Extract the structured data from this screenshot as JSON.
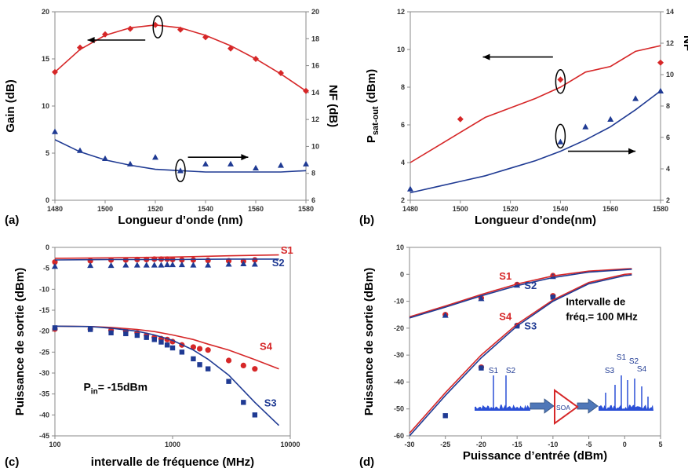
{
  "chart_data": [
    {
      "id": "a",
      "panel_label": "(a)",
      "type": "scatter",
      "xlabel": "Longueur d’onde (nm)",
      "ylabel": "Gain (dB)",
      "y2label": "NF (dB)",
      "xlim": [
        1480,
        1580
      ],
      "ylim": [
        0,
        20
      ],
      "y2lim": [
        6,
        20
      ],
      "xticks": [
        "1480",
        "1500",
        "1520",
        "1540",
        "1560",
        "1580"
      ],
      "yticks": [
        "0",
        "5",
        "10",
        "15",
        "20"
      ],
      "y2ticks": [
        "6",
        "8",
        "10",
        "12",
        "14",
        "16",
        "18",
        "20"
      ],
      "series": [
        {
          "axis": "y",
          "kind": "points",
          "marker": "diamond",
          "color": "#d62728",
          "x": [
            1480,
            1490,
            1500,
            1510,
            1520,
            1530,
            1540,
            1550,
            1560,
            1570,
            1580
          ],
          "y": [
            13.6,
            16.2,
            17.6,
            18.2,
            18.6,
            18.1,
            17.3,
            16.1,
            15.0,
            13.5,
            11.6
          ]
        },
        {
          "axis": "y",
          "kind": "line",
          "color": "#d62728",
          "x": [
            1480,
            1490,
            1500,
            1510,
            1520,
            1530,
            1540,
            1550,
            1560,
            1570,
            1580
          ],
          "y": [
            13.6,
            16.0,
            17.5,
            18.3,
            18.6,
            18.3,
            17.5,
            16.4,
            15.0,
            13.4,
            11.6
          ]
        },
        {
          "axis": "y2",
          "kind": "points",
          "marker": "triangle",
          "color": "#1f3a93",
          "x": [
            1480,
            1490,
            1500,
            1510,
            1520,
            1530,
            1540,
            1550,
            1560,
            1570,
            1580
          ],
          "y": [
            11.1,
            9.7,
            9.1,
            8.7,
            9.2,
            8.2,
            8.7,
            8.7,
            8.4,
            8.6,
            8.7
          ]
        },
        {
          "axis": "y2",
          "kind": "line",
          "color": "#1f3a93",
          "x": [
            1480,
            1490,
            1500,
            1510,
            1520,
            1530,
            1540,
            1550,
            1560,
            1570,
            1580
          ],
          "y": [
            10.5,
            9.6,
            9.0,
            8.6,
            8.3,
            8.2,
            8.1,
            8.1,
            8.1,
            8.1,
            8.2
          ]
        }
      ]
    },
    {
      "id": "b",
      "panel_label": "(b)",
      "type": "scatter",
      "xlabel": "Longueur d’onde(nm)",
      "ylabel_main": "P",
      "ylabel_sub": "sat-out",
      "ylabel_unit": " (dBm)",
      "y2label": "NF",
      "xlim": [
        1480,
        1580
      ],
      "ylim": [
        2,
        12
      ],
      "y2lim": [
        2,
        14
      ],
      "xticks": [
        "1480",
        "1500",
        "1520",
        "1540",
        "1560",
        "1580"
      ],
      "yticks": [
        "2",
        "4",
        "6",
        "8",
        "10",
        "12"
      ],
      "y2ticks": [
        "2",
        "4",
        "6",
        "8",
        "10",
        "12",
        "14"
      ],
      "series": [
        {
          "axis": "y",
          "kind": "points",
          "marker": "diamond",
          "color": "#d62728",
          "x": [
            1500,
            1540,
            1580
          ],
          "y": [
            6.3,
            8.4,
            9.3
          ]
        },
        {
          "axis": "y",
          "kind": "line",
          "color": "#d62728",
          "x": [
            1480,
            1490,
            1500,
            1510,
            1520,
            1530,
            1540,
            1550,
            1560,
            1570,
            1580
          ],
          "y": [
            4.0,
            4.8,
            5.6,
            6.4,
            6.9,
            7.4,
            8.0,
            8.8,
            9.1,
            9.9,
            10.2
          ]
        },
        {
          "axis": "y",
          "kind": "points",
          "marker": "triangle",
          "color": "#1f3a93",
          "x": [
            1480,
            1540,
            1550,
            1560,
            1570,
            1580
          ],
          "y": [
            2.6,
            5.1,
            5.9,
            6.3,
            7.4,
            7.8
          ]
        },
        {
          "axis": "y",
          "kind": "line",
          "color": "#1f3a93",
          "x": [
            1480,
            1490,
            1500,
            1510,
            1520,
            1530,
            1540,
            1550,
            1560,
            1570,
            1580
          ],
          "y": [
            2.4,
            2.7,
            3.0,
            3.3,
            3.7,
            4.1,
            4.6,
            5.2,
            5.9,
            6.8,
            7.8
          ]
        }
      ]
    },
    {
      "id": "c",
      "panel_label": "(c)",
      "type": "scatter",
      "xscale": "log",
      "xlabel": "intervalle de fréquence (MHz)",
      "ylabel": "Puissance de sortie (dBm)",
      "xlim": [
        100,
        10000
      ],
      "ylim": [
        -45,
        0
      ],
      "xticks": [
        "100",
        "1000",
        "10000"
      ],
      "yticks": [
        "-45",
        "-40",
        "-35",
        "-30",
        "-25",
        "-20",
        "-15",
        "-10",
        "-5",
        "0"
      ],
      "annotation": {
        "main": "P",
        "sub": "in",
        "rest": "= -15dBm"
      },
      "series": [
        {
          "name": "S1",
          "kind": "points",
          "marker": "circle",
          "color": "#d62728",
          "x": [
            100,
            200,
            300,
            400,
            500,
            600,
            700,
            800,
            900,
            1000,
            1200,
            1500,
            2000,
            3000,
            4000,
            5000
          ],
          "y": [
            -3.5,
            -3.2,
            -3.0,
            -3.0,
            -2.9,
            -2.9,
            -2.8,
            -2.8,
            -2.8,
            -2.9,
            -3.0,
            -3.0,
            -3.1,
            -3.2,
            -3.3,
            -3.0
          ]
        },
        {
          "name": "S1",
          "kind": "line",
          "color": "#d62728",
          "x": [
            100,
            300,
            1000,
            3000,
            8000
          ],
          "y": [
            -2.6,
            -2.5,
            -2.3,
            -2.0,
            -1.8
          ]
        },
        {
          "name": "S2",
          "kind": "points",
          "marker": "triangle",
          "color": "#1f3a93",
          "x": [
            100,
            200,
            300,
            400,
            500,
            600,
            700,
            800,
            900,
            1000,
            1200,
            1500,
            2000,
            3000,
            4000,
            5000
          ],
          "y": [
            -4.5,
            -4.3,
            -4.3,
            -4.2,
            -4.2,
            -4.2,
            -4.2,
            -4.2,
            -4.1,
            -4.1,
            -4.1,
            -4.2,
            -4.2,
            -4.0,
            -3.9,
            -4.0
          ]
        },
        {
          "name": "S2",
          "kind": "line",
          "color": "#1f3a93",
          "x": [
            100,
            300,
            1000,
            3000,
            8000
          ],
          "y": [
            -3.0,
            -2.9,
            -2.9,
            -2.8,
            -2.8
          ]
        },
        {
          "name": "S4",
          "kind": "points",
          "marker": "circle",
          "color": "#d62728",
          "x": [
            100,
            200,
            300,
            400,
            500,
            600,
            700,
            800,
            900,
            1000,
            1200,
            1500,
            1700,
            2000,
            3000,
            4000,
            5000
          ],
          "y": [
            -19.5,
            -19.5,
            -19.8,
            -20.0,
            -20.4,
            -21.0,
            -21.5,
            -21.8,
            -22.0,
            -22.5,
            -23.3,
            -23.8,
            -24.2,
            -24.5,
            -27.0,
            -28.2,
            -29.0
          ]
        },
        {
          "name": "S4",
          "kind": "line",
          "color": "#d62728",
          "x": [
            100,
            200,
            300,
            500,
            700,
            1000,
            1500,
            2000,
            3000,
            5000,
            8000
          ],
          "y": [
            -18.8,
            -18.9,
            -19.1,
            -19.6,
            -20.1,
            -20.9,
            -22.0,
            -23.1,
            -24.5,
            -26.8,
            -29.0
          ]
        },
        {
          "name": "S3",
          "kind": "points",
          "marker": "square",
          "color": "#1f3a93",
          "x": [
            100,
            200,
            300,
            400,
            500,
            600,
            700,
            800,
            900,
            1000,
            1200,
            1500,
            1700,
            2000,
            3000,
            4000,
            5000
          ],
          "y": [
            -19.2,
            -19.6,
            -20.4,
            -20.6,
            -21.0,
            -21.5,
            -22.0,
            -22.6,
            -23.3,
            -24.0,
            -25.0,
            -26.6,
            -28.0,
            -29.0,
            -32.0,
            -37.0,
            -40.0
          ]
        },
        {
          "name": "S3",
          "kind": "line",
          "color": "#1f3a93",
          "x": [
            100,
            200,
            300,
            500,
            700,
            1000,
            1500,
            2000,
            3000,
            5000,
            8000
          ],
          "y": [
            -18.8,
            -18.9,
            -19.3,
            -20.0,
            -20.9,
            -22.2,
            -24.5,
            -26.7,
            -30.5,
            -37.0,
            -42.5
          ]
        }
      ]
    },
    {
      "id": "d",
      "panel_label": "(d)",
      "type": "scatter",
      "xlabel": "Puissance d’entrée (dBm)",
      "ylabel": "Puissance de sortie (dBm)",
      "xlim": [
        -30,
        5
      ],
      "ylim": [
        -60,
        10
      ],
      "xticks": [
        "-30",
        "-25",
        "-20",
        "-15",
        "-10",
        "-5",
        "0",
        "5"
      ],
      "yticks": [
        "-60",
        "-50",
        "-40",
        "-30",
        "-20",
        "-10",
        "0",
        "10"
      ],
      "annotation_lines": [
        "Intervalle de",
        "fréq.= 100 MHz"
      ],
      "inset": {
        "amp_label": "SOA",
        "in_labels": [
          "S1",
          "S2"
        ],
        "out_labels": [
          "S3",
          "S1",
          "S2",
          "S4"
        ]
      },
      "series": [
        {
          "name": "S1",
          "kind": "points",
          "marker": "circle",
          "color": "#d62728",
          "x": [
            -25,
            -20,
            -15,
            -10
          ],
          "y": [
            -15.0,
            -8.8,
            -3.8,
            -0.5
          ]
        },
        {
          "name": "S2",
          "kind": "points",
          "marker": "triangle",
          "color": "#1f3a93",
          "x": [
            -25,
            -20,
            -15,
            -10
          ],
          "y": [
            -15.2,
            -9.0,
            -4.0,
            -0.8
          ]
        },
        {
          "name": "S1",
          "kind": "line",
          "color": "#d62728",
          "x": [
            -30,
            -25,
            -20,
            -15,
            -10,
            -5,
            0,
            1
          ],
          "y": [
            -15.8,
            -11.8,
            -7.5,
            -3.6,
            -0.6,
            1.2,
            2.0,
            2.1
          ]
        },
        {
          "name": "S2",
          "kind": "line",
          "color": "#1f3a93",
          "x": [
            -30,
            -25,
            -20,
            -15,
            -10,
            -5,
            0,
            1
          ],
          "y": [
            -16.2,
            -12.2,
            -8.0,
            -4.2,
            -1.2,
            0.8,
            1.7,
            1.9
          ]
        },
        {
          "name": "S4",
          "kind": "points",
          "marker": "circle",
          "color": "#d62728",
          "x": [
            -20,
            -15,
            -10
          ],
          "y": [
            -34.5,
            -19.0,
            -8.0
          ]
        },
        {
          "name": "S3",
          "kind": "points",
          "marker": "square",
          "color": "#1f3a93",
          "x": [
            -25,
            -20,
            -15,
            -10
          ],
          "y": [
            -52.5,
            -34.8,
            -19.2,
            -8.5
          ]
        },
        {
          "name": "S4",
          "kind": "line",
          "color": "#d62728",
          "x": [
            -30,
            -25,
            -20,
            -15,
            -10,
            -5,
            0,
            1
          ],
          "y": [
            -59.0,
            -44.0,
            -30.0,
            -18.5,
            -9.5,
            -3.0,
            0.0,
            0.2
          ]
        },
        {
          "name": "S3",
          "kind": "line",
          "color": "#1f3a93",
          "x": [
            -30,
            -25,
            -20,
            -15,
            -10,
            -5,
            0,
            1
          ],
          "y": [
            -60.0,
            -45.0,
            -31.0,
            -19.2,
            -10.0,
            -3.5,
            -0.5,
            -0.2
          ]
        }
      ]
    }
  ]
}
